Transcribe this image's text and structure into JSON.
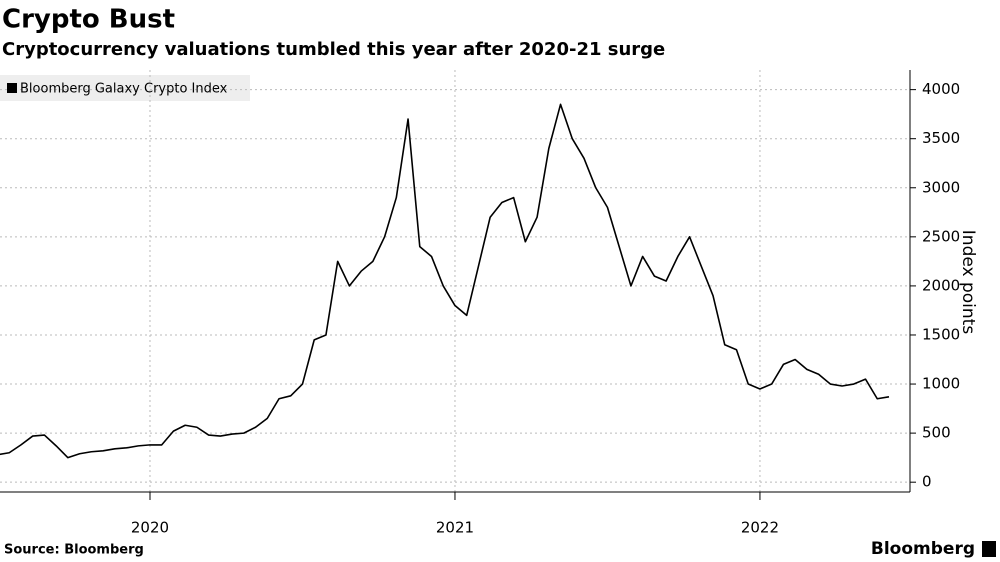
{
  "chart_data": {
    "type": "line",
    "title": "Crypto Bust",
    "subtitle": "Cryptocurrency valuations tumbled this year after 2020-21 surge",
    "categories": [
      null,
      null,
      null,
      null,
      null,
      null,
      null,
      null,
      null,
      null,
      null,
      null,
      null,
      "2020",
      null,
      null,
      null,
      null,
      null,
      null,
      null,
      null,
      null,
      null,
      null,
      null,
      null,
      null,
      null,
      null,
      null,
      null,
      null,
      null,
      null,
      null,
      null,
      null,
      null,
      "2021",
      null,
      null,
      null,
      null,
      null,
      null,
      null,
      null,
      null,
      null,
      null,
      null,
      null,
      null,
      null,
      null,
      null,
      null,
      null,
      null,
      null,
      null,
      null,
      null,
      null,
      "2022",
      null,
      null,
      null,
      null,
      null,
      null,
      null,
      null,
      null,
      null,
      null
    ],
    "series": [
      {
        "name": "Bloomberg Galaxy Crypto Index",
        "color": "#000000",
        "values": [
          280,
          300,
          380,
          470,
          480,
          370,
          250,
          290,
          310,
          320,
          340,
          350,
          370,
          380,
          380,
          520,
          580,
          560,
          480,
          470,
          490,
          500,
          560,
          650,
          850,
          880,
          1000,
          1450,
          1500,
          2250,
          2000,
          2150,
          2250,
          2500,
          2900,
          3700,
          2400,
          2300,
          2000,
          1800,
          1700,
          2200,
          2700,
          2850,
          2900,
          2450,
          2700,
          3400,
          3850,
          3500,
          3300,
          3000,
          2800,
          2400,
          2000,
          2300,
          2100,
          2050,
          2300,
          2500,
          2200,
          1900,
          1400,
          1350,
          1000,
          950,
          1000,
          1200,
          1250,
          1150,
          1100,
          1000,
          980,
          1000,
          1050,
          850,
          870
        ]
      }
    ],
    "ylim": [
      -100,
      4200
    ],
    "yticks": [
      0,
      500,
      1000,
      1500,
      2000,
      2500,
      3000,
      3500,
      4000
    ],
    "ylabel": "Index points",
    "grid": true,
    "source": "Source: Bloomberg",
    "brand": "Bloomberg"
  }
}
